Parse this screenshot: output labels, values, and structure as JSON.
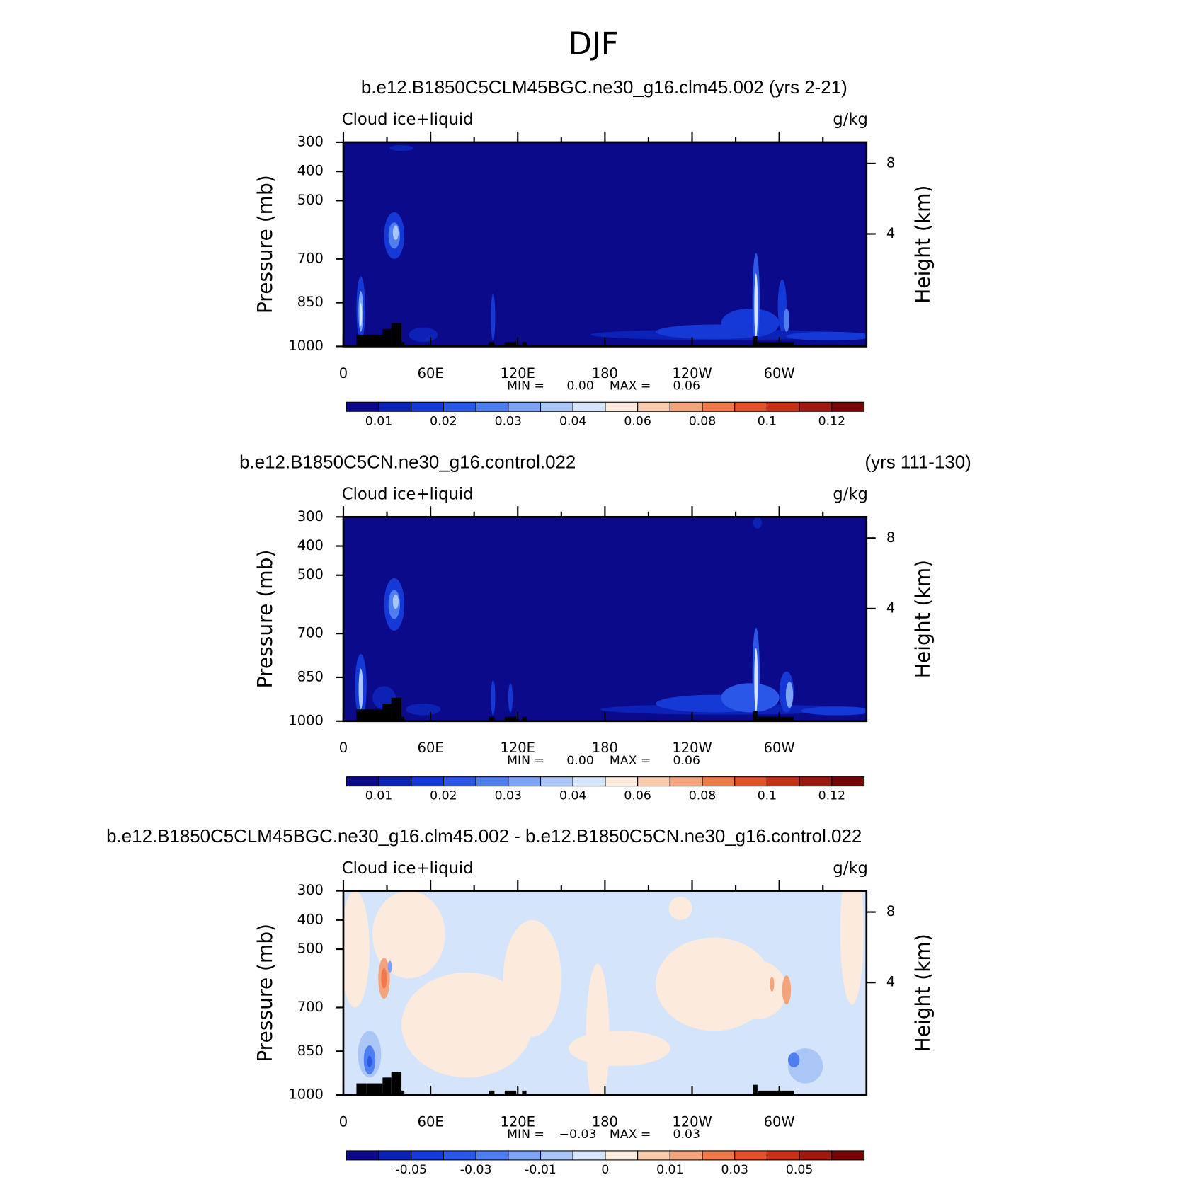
{
  "title": "DJF",
  "chart_data": [
    {
      "type": "contour",
      "title": "b.e12.B1850C5CLM45BGC.ne30_g16.clm45.002 (yrs 2-21)",
      "left_label": "Cloud ice+liquid",
      "right_label": "g/kg",
      "ylabel": "Pressure (mb)",
      "y2label": "Height (km)",
      "ylim": [
        1000,
        300
      ],
      "yticks": [
        300,
        400,
        500,
        700,
        850,
        1000
      ],
      "y2ticks": [
        8,
        4
      ],
      "xlim": [
        0,
        360
      ],
      "xticks": [
        0,
        {
          "value": 60,
          "label": "60E"
        },
        {
          "value": 120,
          "label": "120E"
        },
        180,
        {
          "value": 240,
          "label": "120W"
        },
        {
          "value": 300,
          "label": "60W"
        }
      ],
      "xminorticks": [
        30,
        90,
        150,
        210,
        270,
        330
      ],
      "stats": [
        "MIN =",
        "0.00",
        "MAX =",
        "0.06"
      ],
      "colorbar": {
        "colors": [
          "#0a0a8a",
          "#0c22b6",
          "#1539d6",
          "#2b57e8",
          "#4f7ef0",
          "#7da3f4",
          "#aac6f7",
          "#d4e5fb",
          "#fcebdc",
          "#f8cbaf",
          "#f3a47d",
          "#ee7a4c",
          "#e4512a",
          "#c8301a",
          "#a0170f",
          "#760606"
        ],
        "levels": [
          0.01,
          null,
          0.02,
          null,
          0.03,
          null,
          0.04,
          null,
          0.06,
          null,
          0.08,
          null,
          0.1,
          null,
          0.12
        ]
      }
    },
    {
      "type": "contour",
      "title": "b.e12.B1850C5CN.ne30_g16.control.022",
      "title_right": "(yrs 111-130)",
      "left_label": "Cloud ice+liquid",
      "right_label": "g/kg",
      "ylabel": "Pressure (mb)",
      "y2label": "Height (km)",
      "ylim": [
        1000,
        300
      ],
      "yticks": [
        300,
        400,
        500,
        700,
        850,
        1000
      ],
      "y2ticks": [
        8,
        4
      ],
      "xlim": [
        0,
        360
      ],
      "xticks": [
        0,
        {
          "value": 60,
          "label": "60E"
        },
        {
          "value": 120,
          "label": "120E"
        },
        180,
        {
          "value": 240,
          "label": "120W"
        },
        {
          "value": 300,
          "label": "60W"
        }
      ],
      "xminorticks": [
        30,
        90,
        150,
        210,
        270,
        330
      ],
      "stats": [
        "MIN =",
        "0.00",
        "MAX =",
        "0.06"
      ],
      "colorbar": {
        "colors": [
          "#0a0a8a",
          "#0c22b6",
          "#1539d6",
          "#2b57e8",
          "#4f7ef0",
          "#7da3f4",
          "#aac6f7",
          "#d4e5fb",
          "#fcebdc",
          "#f8cbaf",
          "#f3a47d",
          "#ee7a4c",
          "#e4512a",
          "#c8301a",
          "#a0170f",
          "#760606"
        ],
        "levels": [
          0.01,
          null,
          0.02,
          null,
          0.03,
          null,
          0.04,
          null,
          0.06,
          null,
          0.08,
          null,
          0.1,
          null,
          0.12
        ]
      }
    },
    {
      "type": "contour",
      "title": "b.e12.B1850C5CLM45BGC.ne30_g16.clm45.002 - b.e12.B1850C5CN.ne30_g16.control.022",
      "left_label": "Cloud ice+liquid",
      "right_label": "g/kg",
      "ylabel": "Pressure (mb)",
      "y2label": "Height (km)",
      "ylim": [
        1000,
        300
      ],
      "yticks": [
        300,
        400,
        500,
        700,
        850,
        1000
      ],
      "y2ticks": [
        8,
        4
      ],
      "xlim": [
        0,
        360
      ],
      "xticks": [
        0,
        {
          "value": 60,
          "label": "60E"
        },
        {
          "value": 120,
          "label": "120E"
        },
        180,
        {
          "value": 240,
          "label": "120W"
        },
        {
          "value": 300,
          "label": "60W"
        }
      ],
      "xminorticks": [
        30,
        90,
        150,
        210,
        270,
        330
      ],
      "stats": [
        "MIN =",
        "−0.03",
        "MAX =",
        "0.03"
      ],
      "colorbar": {
        "colors": [
          "#0a0a8a",
          "#0c22b6",
          "#1539d6",
          "#2b57e8",
          "#4f7ef0",
          "#7da3f4",
          "#aac6f7",
          "#d4e5fb",
          "#fcebdc",
          "#f8cbaf",
          "#f3a47d",
          "#ee7a4c",
          "#e4512a",
          "#c8301a",
          "#a0170f",
          "#760606"
        ],
        "levels": [
          null,
          -0.05,
          null,
          -0.03,
          null,
          -0.01,
          null,
          0,
          null,
          0.01,
          null,
          0.03,
          null,
          0.05,
          null
        ]
      }
    }
  ]
}
